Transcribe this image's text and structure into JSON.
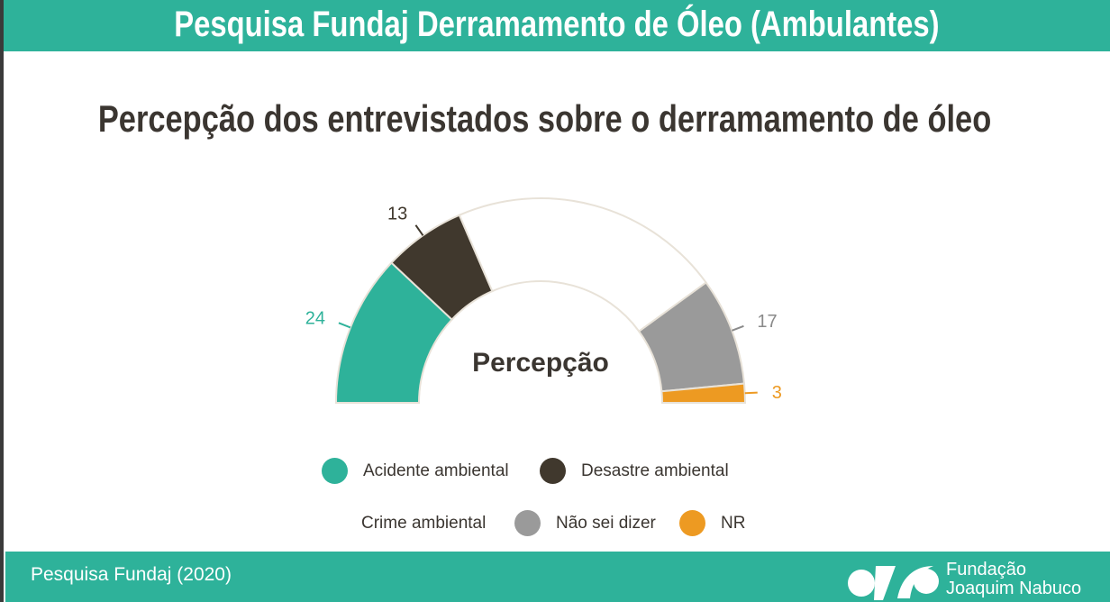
{
  "header": {
    "title": "Pesquisa Fundaj Derramamento de Óleo (Ambulantes)"
  },
  "chart_data": {
    "type": "pie",
    "variant": "half-donut",
    "title": "Percepção dos entrevistados sobre o derramamento de óleo",
    "center_label": "Percepção",
    "categories": [
      "Acidente ambiental",
      "Desastre ambiental",
      "Crime ambiental",
      "Não sei dizer",
      "NR"
    ],
    "values": [
      24,
      13,
      43,
      17,
      3
    ],
    "data_labels": [
      "24",
      "13",
      "",
      "17",
      "3"
    ],
    "colors": [
      "#2eb29a",
      "#40382d",
      "#ffffff",
      "#9a9a9a",
      "#ed9a22"
    ],
    "legend_placement": "bottom"
  },
  "footer": {
    "source": "Pesquisa Fundaj (2020)",
    "logo_line1": "Fundação",
    "logo_line2": "Joaquim Nabuco"
  }
}
